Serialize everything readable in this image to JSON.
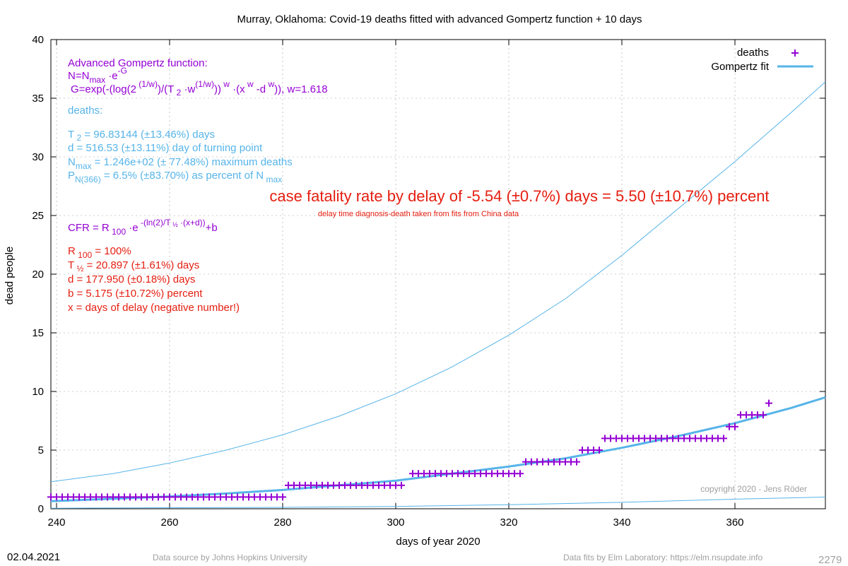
{
  "chart_data": {
    "type": "scatter",
    "title": "Murray,  Oklahoma: Covid-19 deaths fitted with advanced Gompertz function + 10 days",
    "xlabel": "days of year 2020",
    "ylabel": "dead people",
    "xlim": [
      239,
      376
    ],
    "ylim": [
      0,
      40
    ],
    "xticks": [
      240,
      260,
      280,
      300,
      320,
      340,
      360
    ],
    "yticks": [
      0,
      5,
      10,
      15,
      20,
      25,
      30,
      35,
      40
    ],
    "grid": true,
    "legend_position": "top-right",
    "legend": [
      {
        "name": "deaths",
        "color": "#9400d3",
        "marker": "plus"
      },
      {
        "name": "Gompertz fit",
        "color": "#56b4e9",
        "marker": "line"
      }
    ],
    "series": [
      {
        "name": "deaths",
        "kind": "points",
        "color": "#9400d3",
        "steps": [
          {
            "from": 239,
            "to": 280,
            "value": 1
          },
          {
            "from": 281,
            "to": 301,
            "value": 2
          },
          {
            "from": 303,
            "to": 322,
            "value": 3
          },
          {
            "from": 323,
            "to": 332,
            "value": 4
          },
          {
            "from": 333,
            "to": 336,
            "value": 5
          },
          {
            "from": 337,
            "to": 358,
            "value": 6
          },
          {
            "from": 359,
            "to": 360,
            "value": 7
          },
          {
            "from": 361,
            "to": 365,
            "value": 8
          },
          {
            "from": 366,
            "to": 366,
            "value": 9
          }
        ]
      },
      {
        "name": "Gompertz fit",
        "kind": "line",
        "color": "#56b4e9",
        "x": [
          239,
          250,
          260,
          270,
          280,
          290,
          300,
          310,
          320,
          330,
          340,
          350,
          360,
          370,
          376
        ],
        "y": [
          0.65,
          0.85,
          1.05,
          1.3,
          1.6,
          2.0,
          2.4,
          3.0,
          3.6,
          4.3,
          5.2,
          6.2,
          7.3,
          8.6,
          9.5
        ]
      },
      {
        "name": "upper bound",
        "kind": "thin-line",
        "color": "#56b4e9",
        "x": [
          239,
          250,
          260,
          270,
          280,
          290,
          300,
          310,
          320,
          330,
          340,
          350,
          360,
          370,
          376
        ],
        "y": [
          2.3,
          3.0,
          3.9,
          5.0,
          6.3,
          7.9,
          9.8,
          12.1,
          14.8,
          17.9,
          21.6,
          25.6,
          29.6,
          33.8,
          36.4
        ]
      },
      {
        "name": "lower bound",
        "kind": "thin-line",
        "color": "#56b4e9",
        "x": [
          239,
          280,
          300,
          320,
          340,
          360,
          376
        ],
        "y": [
          0.05,
          0.12,
          0.2,
          0.35,
          0.55,
          0.82,
          1.0
        ]
      }
    ],
    "annotations": {
      "gompertz": [
        "Advanced Gompertz function:",
        "N=N max ·e -G",
        "G=exp(-(log(2 (1/w) )/(T 2 ·w (1/w) )) w ·(x w -d w )), w=1.618"
      ],
      "deaths_heading": "deaths:",
      "fit": [
        "T 2 = 96.83144 (±13.46%) days",
        "d = 516.53 (±13.11%) day of turning point",
        "N max = 1.246e+02 (± 77.48%) maximum deaths",
        "P N(366) = 6.5% (±83.70%) as percent of N max"
      ],
      "cfr_headline": "case fatality rate by delay of -5.54 (±0.7%) days = 5.50 (±10.7%) percent",
      "cfr_subline": "delay time diagnosis-death taken from fits from China data",
      "cfr_formula": "CFR = R 100 ·e -(ln(2)/T ½ ·(x+d)) +b",
      "cfr": [
        "R 100 = 100%",
        "T ½ = 20.897 (±1.61%) days",
        "d = 177.950 (±0.18%) days",
        "b = 5.175 (±10.72%) percent",
        "x = days of delay (negative number!)"
      ],
      "copyright": "copyright 2020 - Jens Röder"
    }
  },
  "footer": {
    "date": "02.04.2021",
    "source": "Data source by Johns Hopkins University",
    "fits": "Data fits by Elm Laboratory: https://elm.nsupdate.info",
    "id": "2279"
  }
}
